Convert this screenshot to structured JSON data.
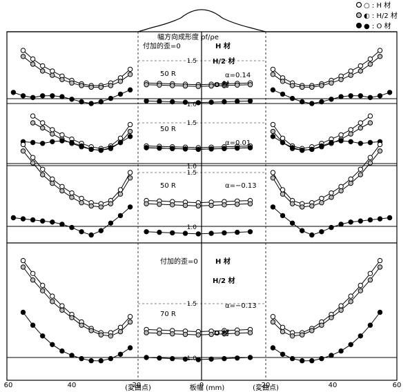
{
  "legend": [
    {
      "key": "H",
      "label": "○ : H 材"
    },
    {
      "key": "H2",
      "label": "◐ : H/2 材"
    },
    {
      "key": "O",
      "label": "● : O 材"
    }
  ],
  "header": {
    "ratio_label": "幅方向成形度 ρf/ρe",
    "add_strain_top": "付加的歪=0",
    "add_strain_bottom": "付加的歪=0"
  },
  "axis": {
    "xlabel": "板幅 (mm)",
    "inflection_left": "(変曲点)",
    "inflection_right": "(変曲点)",
    "xticks": [
      "60",
      "40",
      "20",
      "0",
      "20",
      "40",
      "60"
    ]
  },
  "chart_data": [
    {
      "type": "line",
      "title": "",
      "radius": "50 R",
      "alpha": "α=0.14",
      "yticks": [
        "1.5",
        "1.0"
      ],
      "series_labels": [
        "H 材",
        "H/2 材",
        "O 材"
      ],
      "series": [
        {
          "name": "H 材",
          "x": [
            55,
            52,
            49,
            46,
            43,
            40,
            37,
            34,
            31,
            28,
            25,
            22
          ],
          "y": [
            1.62,
            1.52,
            1.44,
            1.38,
            1.32,
            1.27,
            1.23,
            1.21,
            1.21,
            1.24,
            1.3,
            1.4
          ]
        },
        {
          "name": "H/2 材",
          "x": [
            55,
            52,
            49,
            46,
            43,
            40,
            37,
            34,
            31,
            28,
            25,
            22
          ],
          "y": [
            1.55,
            1.46,
            1.38,
            1.33,
            1.28,
            1.24,
            1.21,
            1.19,
            1.19,
            1.21,
            1.26,
            1.34
          ]
        },
        {
          "name": "O 材",
          "x": [
            58,
            55,
            52,
            49,
            46,
            43,
            40,
            37,
            34,
            31,
            28,
            25,
            22
          ],
          "y": [
            1.13,
            1.09,
            1.07,
            1.09,
            1.09,
            1.08,
            1.05,
            1.02,
            1.0,
            1.02,
            1.06,
            1.11,
            1.16
          ]
        }
      ]
    },
    {
      "type": "line",
      "title": "",
      "radius": "50 R",
      "alpha": "α=0.01",
      "yticks": [
        "1.5",
        "1.0"
      ],
      "series": [
        {
          "name": "H 材",
          "x": [
            52,
            49,
            46,
            43,
            40,
            37,
            34,
            31,
            28,
            25,
            22
          ],
          "y": [
            1.58,
            1.5,
            1.42,
            1.36,
            1.31,
            1.26,
            1.22,
            1.2,
            1.23,
            1.32,
            1.48
          ]
        },
        {
          "name": "H/2 材",
          "x": [
            52,
            49,
            46,
            43,
            40,
            37,
            34,
            31,
            28,
            25,
            22
          ],
          "y": [
            1.5,
            1.44,
            1.37,
            1.31,
            1.26,
            1.22,
            1.19,
            1.18,
            1.2,
            1.27,
            1.4
          ]
        },
        {
          "name": "O 材",
          "x": [
            55,
            52,
            49,
            46,
            43,
            40,
            37,
            34,
            31,
            28,
            25,
            22
          ],
          "y": [
            1.28,
            1.27,
            1.26,
            1.28,
            1.29,
            1.27,
            1.23,
            1.19,
            1.18,
            1.21,
            1.27,
            1.34
          ]
        }
      ]
    },
    {
      "type": "line",
      "title": "",
      "radius": "50 R",
      "alpha": "α=−0.13",
      "yticks": [
        "1.5",
        "1.0"
      ],
      "series": [
        {
          "name": "H 材",
          "x": [
            55,
            52,
            49,
            46,
            43,
            40,
            37,
            34,
            31,
            28,
            25,
            22
          ],
          "y": [
            1.76,
            1.64,
            1.53,
            1.44,
            1.37,
            1.31,
            1.26,
            1.22,
            1.21,
            1.24,
            1.34,
            1.5
          ]
        },
        {
          "name": "H/2 材",
          "x": [
            55,
            52,
            49,
            46,
            43,
            40,
            37,
            34,
            31,
            28,
            25,
            22
          ],
          "y": [
            1.7,
            1.59,
            1.48,
            1.4,
            1.33,
            1.27,
            1.22,
            1.19,
            1.18,
            1.21,
            1.3,
            1.45
          ]
        },
        {
          "name": "O 材",
          "x": [
            58,
            55,
            52,
            49,
            46,
            43,
            40,
            37,
            34,
            31,
            28,
            25,
            22
          ],
          "y": [
            1.08,
            1.07,
            1.06,
            1.05,
            1.04,
            1.02,
            0.99,
            0.95,
            0.92,
            0.96,
            1.03,
            1.1,
            1.18
          ]
        }
      ]
    },
    {
      "type": "line",
      "title": "",
      "radius": "70 R",
      "alpha": "α=−0.13",
      "yticks": [
        "1.5",
        "1.0"
      ],
      "series_labels": [
        "H 材",
        "H/2 材",
        "O 材"
      ],
      "series": [
        {
          "name": "H 材",
          "x": [
            55,
            52,
            49,
            46,
            43,
            40,
            37,
            34,
            31,
            28,
            25,
            22
          ],
          "y": [
            1.9,
            1.78,
            1.67,
            1.57,
            1.48,
            1.4,
            1.33,
            1.27,
            1.23,
            1.23,
            1.28,
            1.38
          ]
        },
        {
          "name": "H/2 材",
          "x": [
            55,
            52,
            49,
            46,
            43,
            40,
            37,
            34,
            31,
            28,
            25,
            22
          ],
          "y": [
            1.84,
            1.72,
            1.62,
            1.52,
            1.44,
            1.37,
            1.3,
            1.25,
            1.21,
            1.2,
            1.24,
            1.33
          ]
        },
        {
          "name": "O 材",
          "x": [
            55,
            52,
            49,
            46,
            43,
            40,
            37,
            34,
            31,
            28,
            25,
            22
          ],
          "y": [
            1.42,
            1.3,
            1.2,
            1.12,
            1.06,
            1.02,
            0.99,
            0.97,
            0.97,
            0.99,
            1.03,
            1.09
          ]
        }
      ]
    }
  ]
}
